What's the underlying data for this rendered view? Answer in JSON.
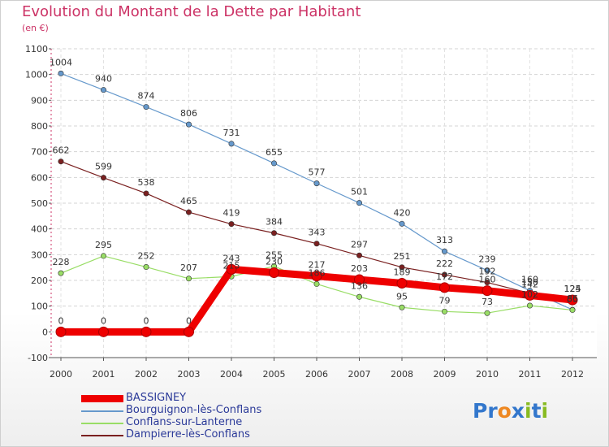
{
  "chart_data": {
    "type": "line",
    "title": "Evolution du Montant de la Dette par Habitant",
    "subtitle": "(en €)",
    "xlabel": "",
    "ylabel": "",
    "ylim": [
      -100,
      1100
    ],
    "yticks": [
      "-100",
      "0",
      "100",
      "200",
      "300",
      "400",
      "500",
      "600",
      "700",
      "800",
      "900",
      "1000",
      "1100"
    ],
    "x": [
      "2000",
      "2001",
      "2002",
      "2003",
      "2004",
      "2005",
      "2006",
      "2007",
      "2008",
      "2009",
      "2010",
      "2011",
      "2012"
    ],
    "legend_position": "bottom-left",
    "series": [
      {
        "name": "BASSIGNEY",
        "color": "#ee0000",
        "values": [
          0,
          0,
          0,
          0,
          243,
          230,
          217,
          203,
          189,
          172,
          160,
          142,
          124
        ]
      },
      {
        "name": "Bourguignon-lès-Conflans",
        "color": "#6699cc",
        "values": [
          1004,
          940,
          874,
          806,
          731,
          655,
          577,
          501,
          420,
          313,
          239,
          160,
          86
        ]
      },
      {
        "name": "Conflans-sur-Lanterne",
        "color": "#99dd66",
        "values": [
          228,
          295,
          252,
          207,
          215,
          255,
          186,
          136,
          95,
          79,
          73,
          102,
          85
        ]
      },
      {
        "name": "Dampierre-lès-Conflans",
        "color": "#7a2020",
        "values": [
          662,
          599,
          538,
          465,
          419,
          384,
          343,
          297,
          251,
          222,
          192,
          150,
          125
        ]
      }
    ]
  },
  "brand": {
    "name": "Proxiti",
    "letters": [
      "P",
      "r",
      "o",
      "x",
      "i",
      "t",
      "i"
    ],
    "colors": [
      "#3377cc",
      "#3377cc",
      "#ee8822",
      "#3377cc",
      "#88bb22",
      "#3377cc",
      "#88bb22"
    ]
  }
}
